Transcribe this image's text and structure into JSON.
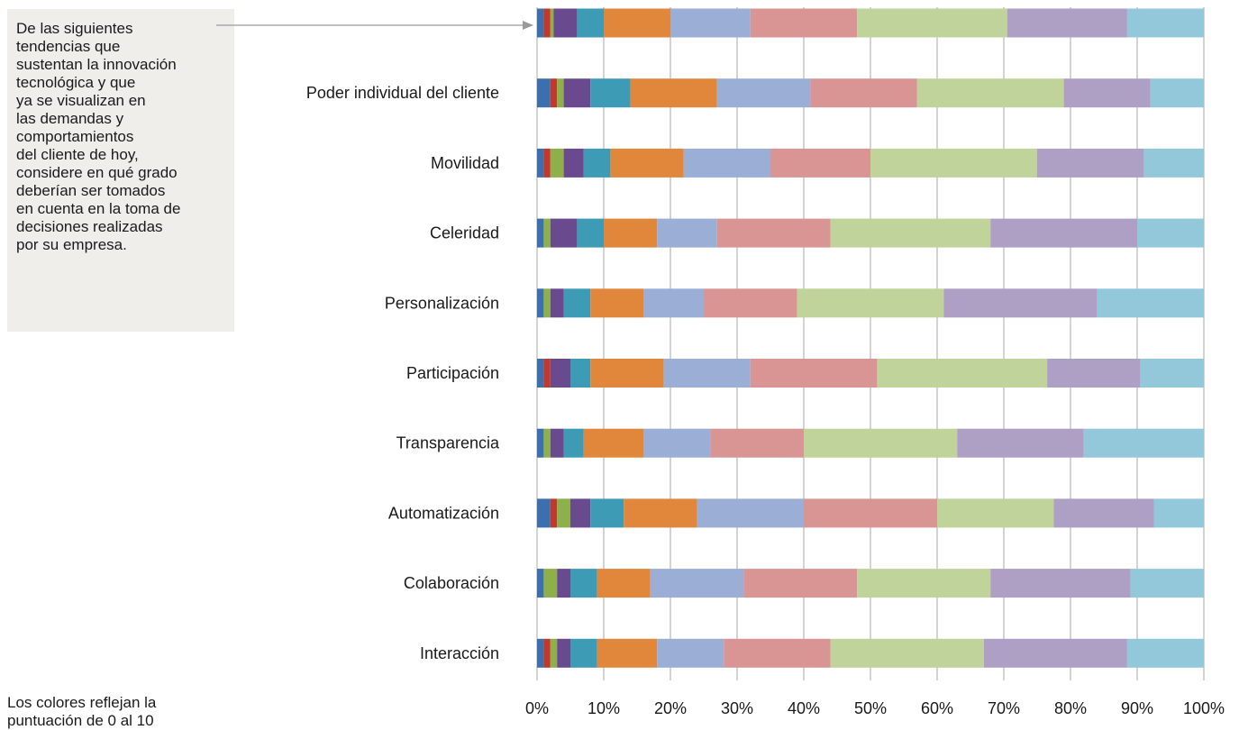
{
  "callout": {
    "text": "De las siguientes\ntendencias que\nsustentan la innovación\ntecnológica y que\nya se visualizan en\nlas demandas y\ncomportamientos\ndel cliente de hoy,\nconsidere en qué grado\ndeberían ser tomados\nen cuenta en la toma de\ndecisiones  realizadas\npor su empresa."
  },
  "footnote": {
    "text": "Los colores reflejan la\npuntuación de 0 al 10"
  },
  "chart_data": {
    "type": "bar",
    "orientation": "horizontal",
    "stacked": "percent",
    "title": "",
    "xlabel": "",
    "ylabel": "",
    "xlim": [
      0,
      100
    ],
    "x_ticks": [
      "0%",
      "10%",
      "20%",
      "30%",
      "40%",
      "50%",
      "60%",
      "70%",
      "80%",
      "90%",
      "100%"
    ],
    "grid": true,
    "categories": [
      "",
      "Poder individual del cliente",
      "Movilidad",
      "Celeridad",
      "Personalización",
      "Participación",
      "Transparencia",
      "Automatización",
      "Colaboración",
      "Interacción"
    ],
    "colors": [
      "#3b6fae",
      "#c0392b",
      "#8db04a",
      "#6a4a8e",
      "#3e9bb5",
      "#e0873c",
      "#9aaed6",
      "#d89594",
      "#bfd39a",
      "#ae9fc4",
      "#93c8db"
    ],
    "segments": [
      [
        1,
        1,
        0.5,
        3.5,
        4,
        10,
        12,
        16,
        22.5,
        18,
        11.5
      ],
      [
        2,
        1,
        1,
        4,
        6,
        13,
        14,
        16,
        22,
        13,
        8
      ],
      [
        1,
        1,
        2,
        3,
        4,
        11,
        13,
        15,
        25,
        16,
        9
      ],
      [
        1,
        0,
        1,
        4,
        4,
        8,
        9,
        17,
        24,
        22,
        10
      ],
      [
        1,
        0,
        1,
        2,
        4,
        8,
        9,
        14,
        22,
        23,
        16
      ],
      [
        1,
        1,
        0,
        3,
        3,
        11,
        13,
        19,
        25.5,
        14,
        9.5
      ],
      [
        1,
        0,
        1,
        2,
        3,
        9,
        10,
        14,
        23,
        19,
        18
      ],
      [
        2,
        1,
        2,
        3,
        5,
        11,
        16,
        20,
        17.5,
        15,
        7.5
      ],
      [
        1,
        0,
        2,
        2,
        4,
        8,
        14,
        17,
        20,
        21,
        11
      ],
      [
        1,
        1,
        1,
        2,
        4,
        9,
        10,
        16,
        23,
        21.5,
        11.5
      ]
    ]
  }
}
